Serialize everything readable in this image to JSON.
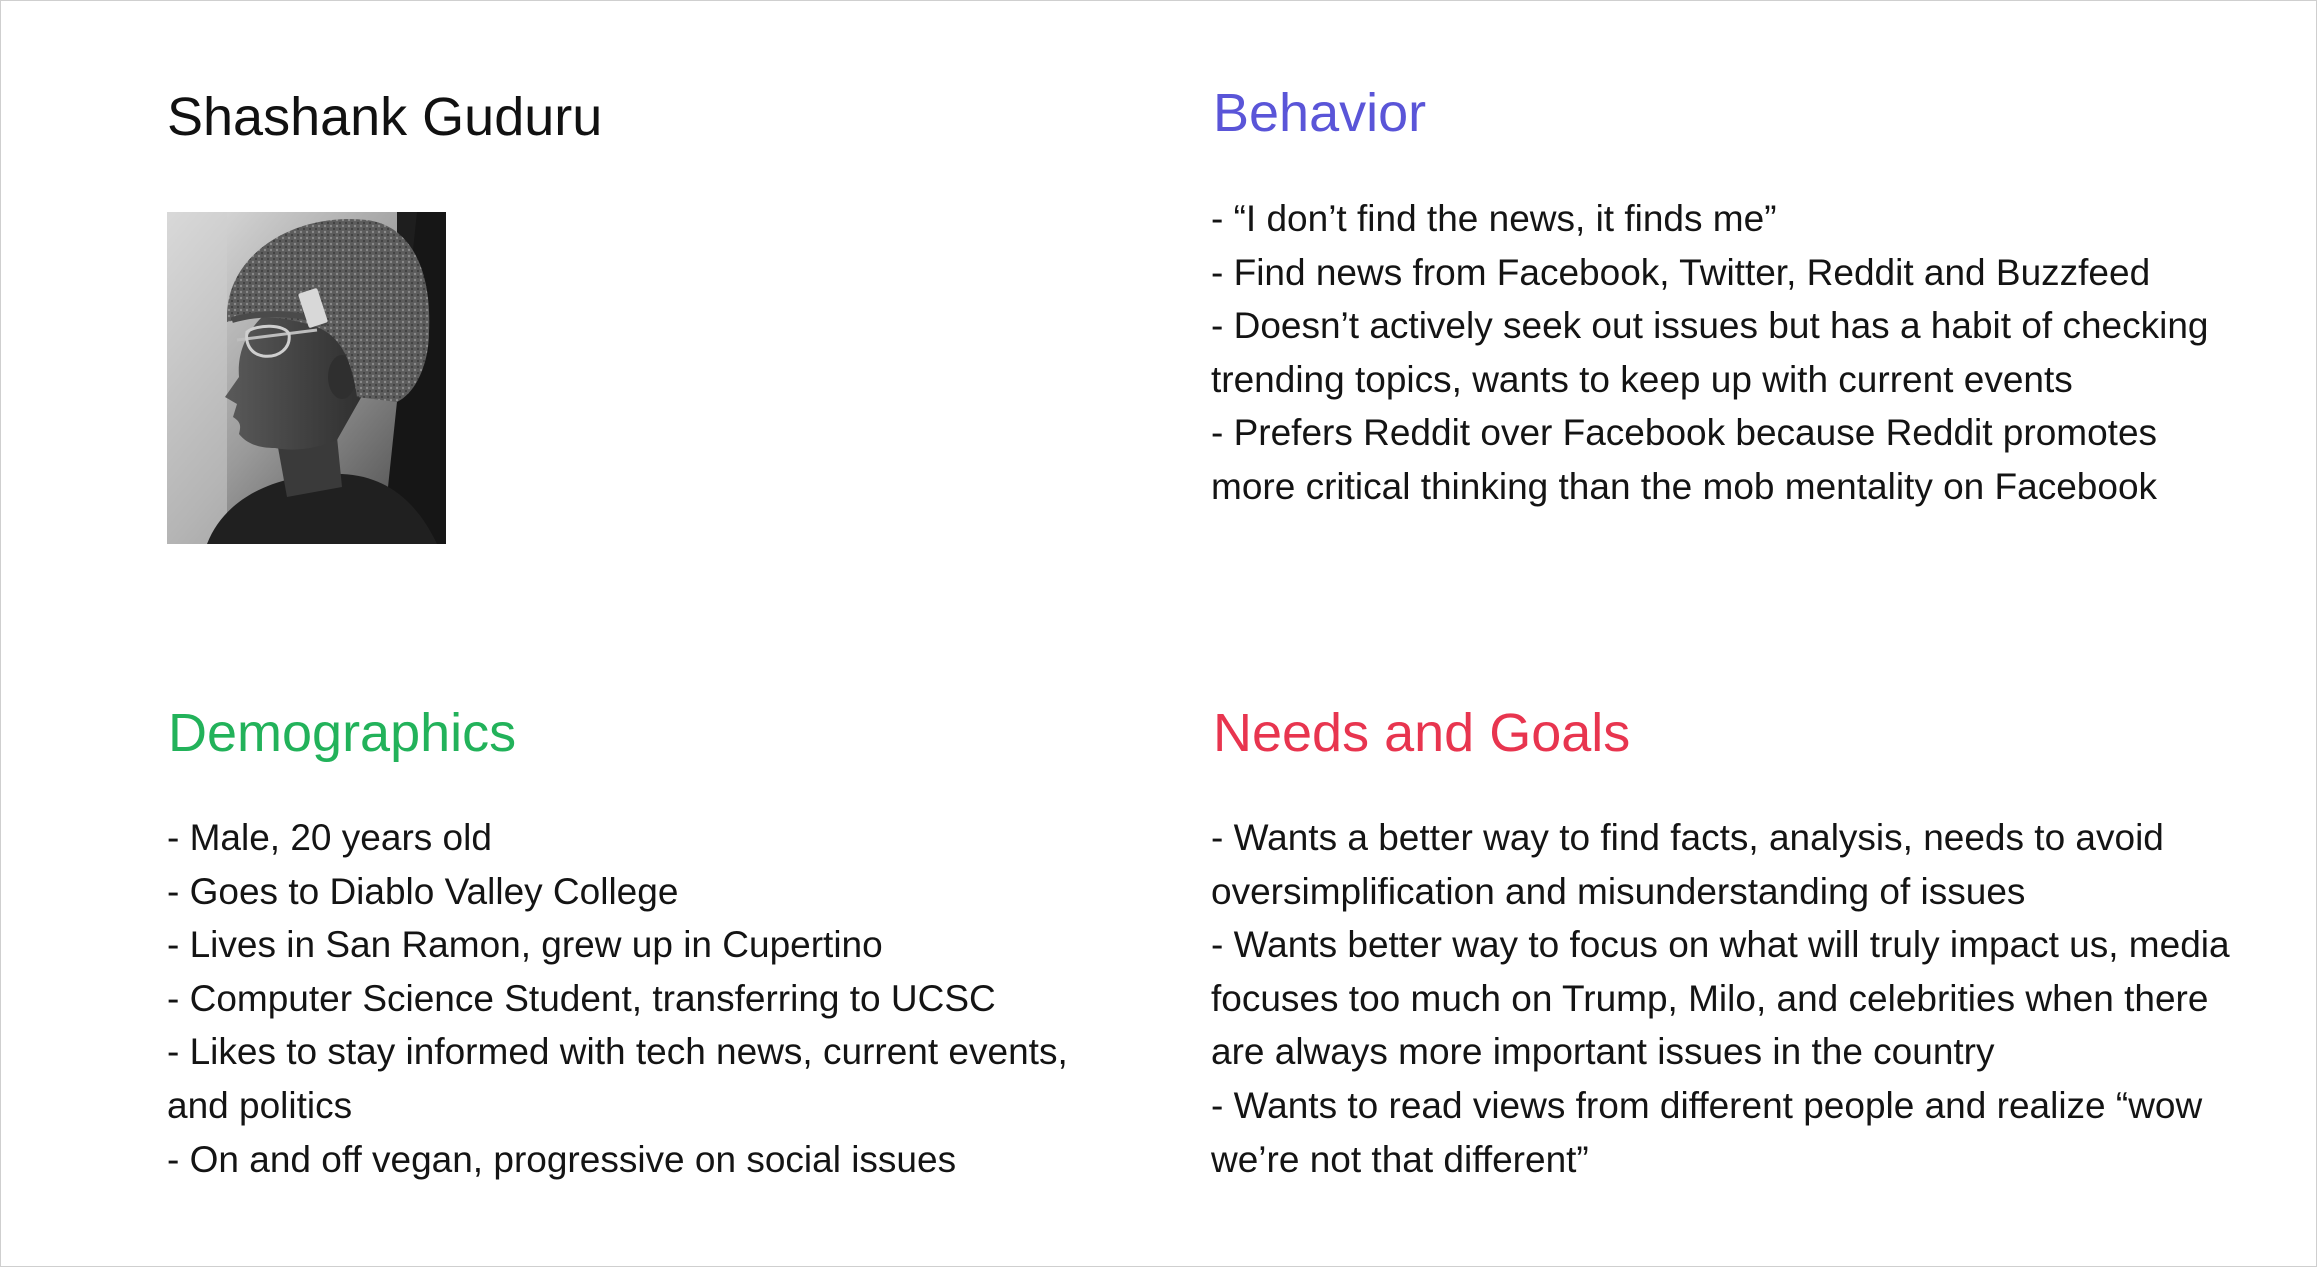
{
  "persona": {
    "name": "Shashank Guduru",
    "photo_alt": "Black and white side profile photo of a man wearing glasses and a knit beanie"
  },
  "behavior": {
    "heading": "Behavior",
    "color": "#5a55d8",
    "items": [
      "- “I don’t find the news, it finds me”",
      "- Find news from Facebook, Twitter, Reddit and Buzzfeed",
      "- Doesn’t actively seek out issues but has a habit of checking trending topics, wants to keep up with current events",
      "- Prefers Reddit over Facebook because Reddit promotes more critical thinking than the mob mentality on Facebook"
    ]
  },
  "demographics": {
    "heading": "Demographics",
    "color": "#22b25a",
    "items": [
      "- Male, 20 years old",
      "- Goes to Diablo Valley College",
      "- Lives in San Ramon, grew up in Cupertino",
      "- Computer Science Student, transferring to UCSC",
      "- Likes to stay informed with tech news, current events, and politics",
      "- On and off vegan, progressive on social issues"
    ]
  },
  "needs_goals": {
    "heading": "Needs and Goals",
    "color": "#e8354f",
    "items": [
      "- Wants a better way to find facts, analysis, needs to avoid oversimplification and misunderstanding of issues",
      "- Wants better way to focus on what will truly impact us, media focuses too much on Trump, Milo, and celebrities when there are always more important issues in the country",
      "- Wants to read views from different people and realize “wow we’re not that different”"
    ]
  }
}
